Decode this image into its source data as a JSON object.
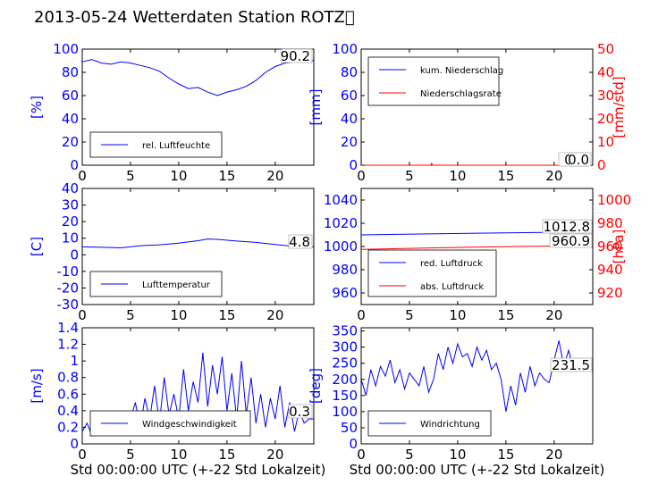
{
  "figure": {
    "title": "2013-05-24 Wetterdaten Station ROTZ\u0000"
  },
  "colors": {
    "blue": "#0000ff",
    "red": "#ff0000",
    "fill": "#ffffff",
    "axis": "#000000"
  },
  "chart_data": [
    {
      "type": "line",
      "xlabel": "",
      "ylabel": "[%]",
      "xlim": [
        0,
        24
      ],
      "ylim": [
        0,
        100
      ],
      "xticks": [
        0,
        5,
        10,
        15,
        20
      ],
      "yticks": [
        0,
        20,
        40,
        60,
        80,
        100
      ],
      "legend": {
        "position": "lower-left",
        "entries": [
          "rel. Luftfeuchte"
        ]
      },
      "series": [
        {
          "name": "rel. Luftfeuchte",
          "color": "#0000ff",
          "x": [
            0,
            1,
            2,
            3,
            4,
            5,
            6,
            7,
            8,
            9,
            10,
            11,
            12,
            13,
            14,
            15,
            16,
            17,
            18,
            19,
            20,
            21,
            22,
            23,
            24
          ],
          "y": [
            89,
            91,
            88,
            87,
            89,
            88,
            86,
            84,
            81,
            75,
            70,
            66,
            67,
            63,
            60,
            63,
            65,
            68,
            73,
            80,
            85,
            88,
            89,
            90,
            90.2
          ]
        }
      ],
      "last_value": "90.2"
    },
    {
      "type": "line",
      "xlabel": "",
      "ylabel": "[mm]",
      "y2label": "[mm/std]",
      "xlim": [
        0,
        24
      ],
      "ylim": [
        0,
        100
      ],
      "y2lim": [
        0,
        50
      ],
      "xticks": [
        0,
        5,
        10,
        15,
        20
      ],
      "yticks": [
        0,
        20,
        40,
        60,
        80,
        100
      ],
      "y2ticks": [
        0,
        10,
        20,
        30,
        40,
        50
      ],
      "legend": {
        "position": "upper-left",
        "entries": [
          "kum. Niederschlag",
          "Niederschlagsrate"
        ]
      },
      "series": [
        {
          "name": "kum. Niederschlag",
          "color": "#0000ff",
          "axis": "left",
          "x": [
            0,
            24
          ],
          "y": [
            0,
            0
          ]
        },
        {
          "name": "Niederschlagsrate",
          "color": "#ff0000",
          "axis": "right",
          "x": [
            0,
            7.2,
            7.3,
            7.4,
            24
          ],
          "y": [
            0,
            0,
            0.8,
            0,
            0
          ]
        }
      ],
      "last_value": "0.0",
      "last_value_2": "0.0"
    },
    {
      "type": "line",
      "xlabel": "",
      "ylabel": "[C]",
      "xlim": [
        0,
        24
      ],
      "ylim": [
        -30,
        40
      ],
      "xticks": [
        0,
        5,
        10,
        15,
        20
      ],
      "yticks": [
        -30,
        -20,
        -10,
        0,
        10,
        20,
        30,
        40
      ],
      "legend": {
        "position": "lower-left",
        "entries": [
          "Lufttemperatur"
        ]
      },
      "series": [
        {
          "name": "Lufttemperatur",
          "color": "#0000ff",
          "x": [
            0,
            2,
            4,
            6,
            8,
            10,
            12,
            13,
            14,
            16,
            18,
            20,
            22,
            24
          ],
          "y": [
            4.8,
            4.5,
            4.2,
            5.5,
            6.0,
            7.0,
            8.5,
            9.5,
            9.3,
            8.3,
            7.5,
            6.2,
            5.0,
            4.8
          ]
        }
      ],
      "last_value": "4.8"
    },
    {
      "type": "line",
      "xlabel": "",
      "ylabel": "",
      "y2label": "[hPa]",
      "xlim": [
        0,
        24
      ],
      "ylim": [
        950,
        1050
      ],
      "y2lim": [
        910,
        1010
      ],
      "xticks": [
        0,
        5,
        10,
        15,
        20
      ],
      "yticks": [
        960,
        980,
        1000,
        1020,
        1040
      ],
      "y2ticks": [
        920,
        940,
        960,
        980,
        1000
      ],
      "legend": {
        "position": "lower-left",
        "entries": [
          "red. Luftdruck",
          "abs. Luftdruck"
        ]
      },
      "series": [
        {
          "name": "red. Luftdruck",
          "color": "#0000ff",
          "axis": "left",
          "x": [
            0,
            6,
            12,
            18,
            24
          ],
          "y": [
            1010.0,
            1010.8,
            1011.5,
            1012.0,
            1012.8
          ]
        },
        {
          "name": "abs. Luftdruck",
          "color": "#ff0000",
          "axis": "right",
          "x": [
            0,
            6,
            12,
            18,
            24
          ],
          "y": [
            957.5,
            958.5,
            959.5,
            960.2,
            960.9
          ]
        }
      ],
      "last_value": "1012.8",
      "last_value_2": "960.9"
    },
    {
      "type": "line",
      "xlabel": "Std 00:00:00 UTC (+-22 Std Lokalzeit)",
      "ylabel": "[m/s]",
      "xlim": [
        0,
        24
      ],
      "ylim": [
        0,
        1.4
      ],
      "xticks": [
        0,
        5,
        10,
        15,
        20
      ],
      "yticks": [
        0,
        0.2,
        0.4,
        0.6,
        0.8,
        1.0,
        1.2,
        1.4
      ],
      "legend": {
        "position": "lower-left",
        "entries": [
          "Windgeschwindigkeit"
        ]
      },
      "series": [
        {
          "name": "Windgeschwindigkeit",
          "color": "#0000ff",
          "x": [
            0,
            0.5,
            1,
            1.5,
            2,
            2.5,
            3,
            3.5,
            4,
            4.5,
            5,
            5.5,
            6,
            6.5,
            7,
            7.5,
            8,
            8.5,
            9,
            9.5,
            10,
            10.5,
            11,
            11.5,
            12,
            12.5,
            13,
            13.5,
            14,
            14.5,
            15,
            15.5,
            16,
            16.5,
            17,
            17.5,
            18,
            18.5,
            19,
            19.5,
            20,
            20.5,
            21,
            21.5,
            22,
            22.5,
            23,
            23.5,
            24
          ],
          "y": [
            0.15,
            0.25,
            0.1,
            0.3,
            0.2,
            0.15,
            0.35,
            0.1,
            0.4,
            0.2,
            0.3,
            0.5,
            0.2,
            0.55,
            0.3,
            0.7,
            0.25,
            0.8,
            0.35,
            0.6,
            0.3,
            0.9,
            0.4,
            0.75,
            0.5,
            1.1,
            0.45,
            0.95,
            0.6,
            1.05,
            0.4,
            0.85,
            0.3,
            1.0,
            0.35,
            0.8,
            0.25,
            0.6,
            0.2,
            0.55,
            0.3,
            0.7,
            0.2,
            0.5,
            0.15,
            0.4,
            0.25,
            0.3,
            0.3
          ]
        }
      ],
      "last_value": "0.3"
    },
    {
      "type": "line",
      "xlabel": "Std 00:00:00 UTC (+-22 Std Lokalzeit)",
      "ylabel": "[deg]",
      "xlim": [
        0,
        24
      ],
      "ylim": [
        0,
        360
      ],
      "xticks": [
        0,
        5,
        10,
        15,
        20
      ],
      "yticks": [
        0,
        50,
        100,
        150,
        200,
        250,
        300,
        350
      ],
      "legend": {
        "position": "lower-left",
        "entries": [
          "Windrichtung"
        ]
      },
      "series": [
        {
          "name": "Windrichtung",
          "color": "#0000ff",
          "x": [
            0,
            0.5,
            1,
            1.5,
            2,
            2.5,
            3,
            3.5,
            4,
            4.5,
            5,
            5.5,
            6,
            6.5,
            7,
            7.5,
            8,
            8.5,
            9,
            9.5,
            10,
            10.5,
            11,
            11.5,
            12,
            12.5,
            13,
            13.5,
            14,
            14.5,
            15,
            15.5,
            16,
            16.5,
            17,
            17.5,
            18,
            18.5,
            19,
            19.5,
            20,
            20.5,
            21,
            21.5,
            22,
            22.5,
            23,
            23.5,
            24
          ],
          "y": [
            200,
            150,
            230,
            180,
            240,
            210,
            260,
            190,
            230,
            170,
            220,
            200,
            180,
            240,
            160,
            200,
            280,
            230,
            300,
            250,
            310,
            270,
            280,
            240,
            300,
            260,
            290,
            230,
            250,
            200,
            100,
            180,
            120,
            220,
            160,
            240,
            180,
            220,
            200,
            190,
            260,
            320,
            240,
            290,
            230,
            250,
            240,
            235,
            231.5
          ]
        }
      ],
      "last_value": "231.5"
    }
  ]
}
